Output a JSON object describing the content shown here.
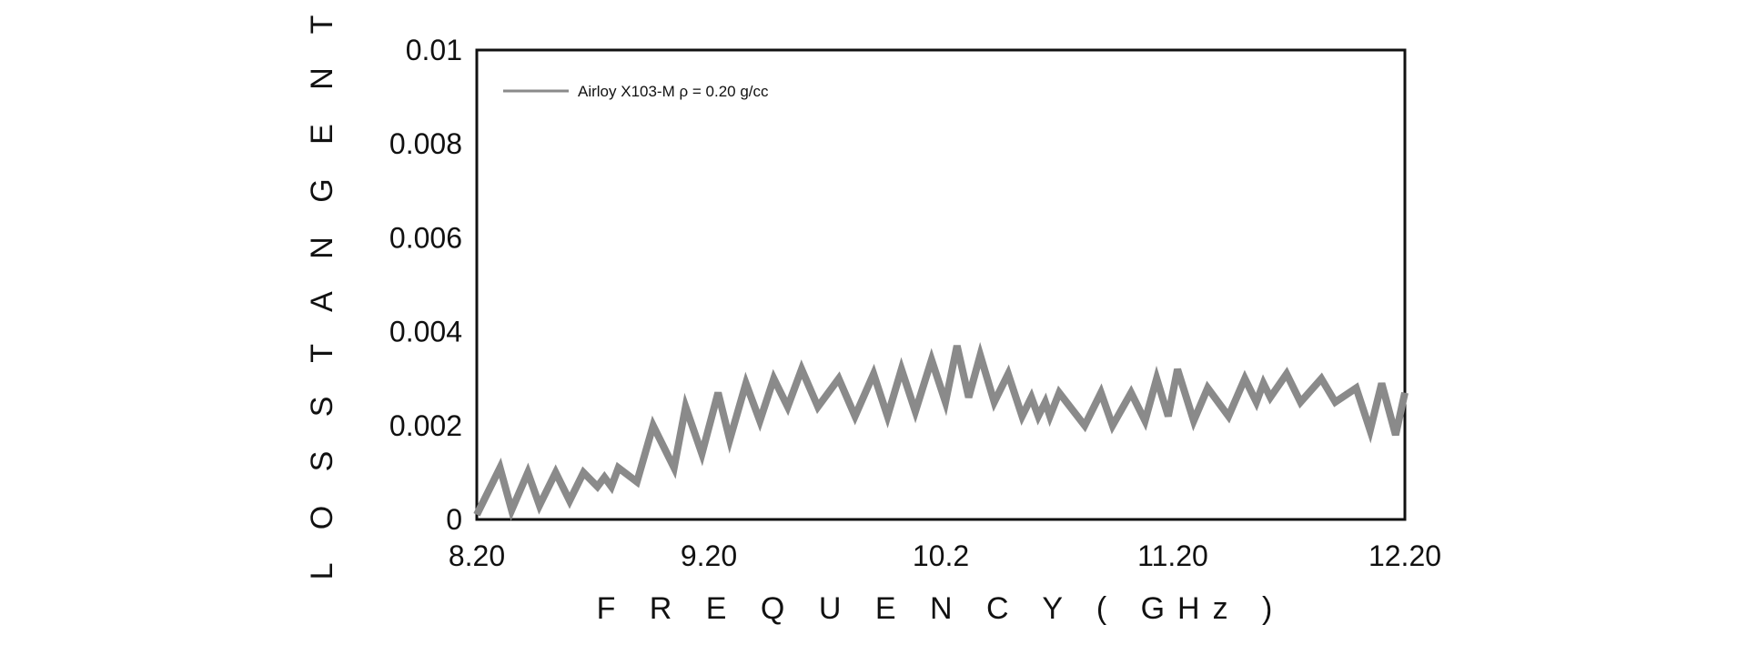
{
  "chart_data": {
    "type": "line",
    "xlabel": "F R E Q U E N C Y  ( GHz )",
    "ylabel": "L O S S  T A N G E N T",
    "xlim": [
      8.2,
      12.2
    ],
    "ylim": [
      0,
      0.01
    ],
    "x_ticks": [
      "8.20",
      "9.20",
      "10.2",
      "11.20",
      "12.20"
    ],
    "y_ticks": [
      "0",
      "0.002",
      "0.004",
      "0.006",
      "0.008",
      "0.01"
    ],
    "grid": false,
    "legend_position": "top-left",
    "series": [
      {
        "name": "Airloy X103-M  ρ = 0.20 g/cc",
        "color": "#8a8a8a",
        "x": [
          8.2,
          8.3,
          8.35,
          8.42,
          8.47,
          8.54,
          8.6,
          8.66,
          8.72,
          8.75,
          8.78,
          8.81,
          8.89,
          8.96,
          9.05,
          9.1,
          9.17,
          9.24,
          9.29,
          9.36,
          9.42,
          9.48,
          9.54,
          9.6,
          9.67,
          9.76,
          9.83,
          9.91,
          9.97,
          10.03,
          10.09,
          10.16,
          10.22,
          10.27,
          10.32,
          10.37,
          10.43,
          10.49,
          10.55,
          10.59,
          10.62,
          10.65,
          10.67,
          10.71,
          10.82,
          10.89,
          10.94,
          11.02,
          11.08,
          11.13,
          11.18,
          11.22,
          11.29,
          11.35,
          11.44,
          11.51,
          11.56,
          11.59,
          11.62,
          11.69,
          11.75,
          11.84,
          11.9,
          11.99,
          12.05,
          12.1,
          12.16,
          12.2
        ],
        "y": [
          0.0001,
          0.0011,
          0.0002,
          0.001,
          0.0003,
          0.001,
          0.0004,
          0.001,
          0.0007,
          0.0009,
          0.0007,
          0.0011,
          0.0008,
          0.002,
          0.0011,
          0.0024,
          0.0014,
          0.0027,
          0.0017,
          0.0029,
          0.0021,
          0.003,
          0.0024,
          0.0032,
          0.0024,
          0.003,
          0.0022,
          0.0031,
          0.0022,
          0.0032,
          0.0023,
          0.0034,
          0.0025,
          0.0037,
          0.0026,
          0.0035,
          0.0025,
          0.0031,
          0.0022,
          0.0026,
          0.0022,
          0.0025,
          0.0022,
          0.0027,
          0.002,
          0.0027,
          0.002,
          0.0027,
          0.0021,
          0.003,
          0.0022,
          0.0032,
          0.0021,
          0.0028,
          0.0022,
          0.003,
          0.0025,
          0.0029,
          0.0026,
          0.0031,
          0.0025,
          0.003,
          0.0025,
          0.0028,
          0.0019,
          0.0029,
          0.0018,
          0.0027
        ]
      }
    ]
  }
}
